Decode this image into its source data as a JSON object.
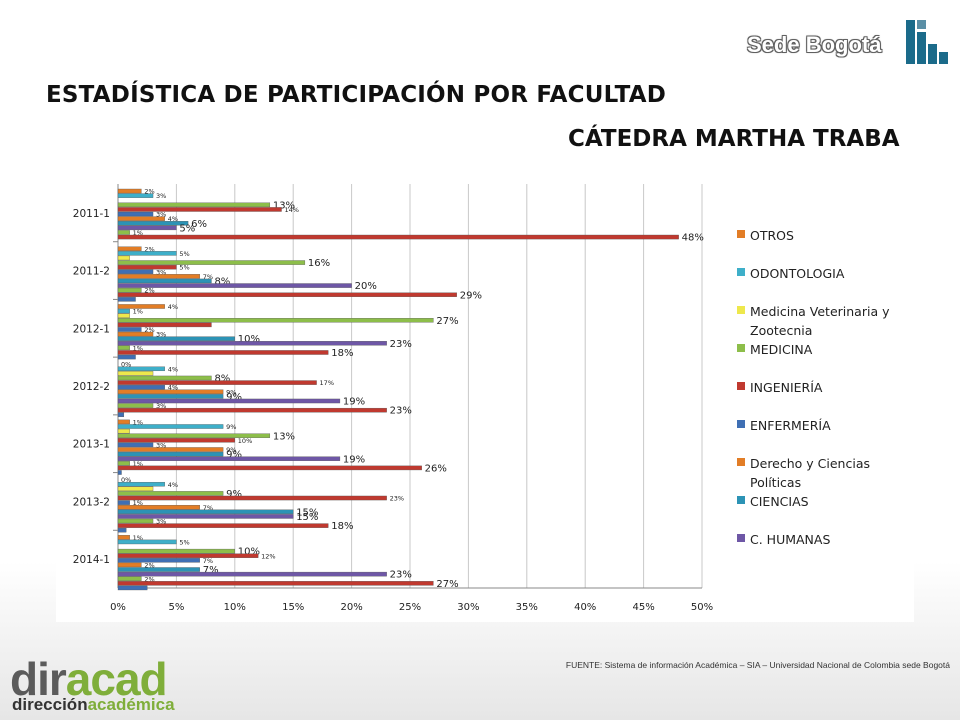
{
  "header": {
    "brand": "Sede Bogotá",
    "title": "ESTADÍSTICA DE PARTICIPACIÓN POR FACULTAD",
    "subtitle": "CÁTEDRA MARTHA TRABA"
  },
  "footer": {
    "logo_part1": "dir",
    "logo_part2": "acad",
    "logo_sub1": "dirección",
    "logo_sub2": "académica",
    "source": "FUENTE: Sistema de información Académica – SIA – Universidad Nacional de Colombia sede Bogotá"
  },
  "chart_data": {
    "type": "bar",
    "orientation": "horizontal",
    "categories": [
      "2011-1",
      "2011-2",
      "2012-1",
      "2012-2",
      "2013-1",
      "2013-2",
      "2014-1"
    ],
    "xlim": [
      0,
      50
    ],
    "xticks": [
      "0%",
      "5%",
      "10%",
      "15%",
      "20%",
      "25%",
      "30%",
      "35%",
      "40%",
      "45%",
      "50%"
    ],
    "grid": true,
    "legend_position": "right",
    "series": [
      {
        "name": "OTROS",
        "color": "#E27D26",
        "values": [
          2,
          2,
          4,
          0,
          1,
          0,
          1
        ],
        "labels": [
          "2%",
          "2%",
          "4%",
          "0%",
          "1%",
          "0%",
          "1%"
        ]
      },
      {
        "name": "ODONTOLOGIA",
        "color": "#3EAFC9",
        "values": [
          3,
          5,
          1,
          4,
          9,
          4,
          5
        ],
        "labels": [
          "3%",
          "5%",
          "1%",
          "4%",
          "9%",
          "4%",
          "5%"
        ]
      },
      {
        "name": "Medicina Veterinaria y Zootecnia",
        "color": "#EEE84C",
        "values": [
          0,
          1,
          1,
          3,
          1,
          3,
          0
        ],
        "labels": [
          "",
          "",
          "",
          "",
          "",
          "",
          ""
        ]
      },
      {
        "name": "MEDICINA",
        "color": "#8DBE4A",
        "values": [
          13,
          16,
          27,
          8,
          13,
          9,
          10
        ],
        "labels": [
          "13%",
          "16%",
          "27%",
          "8%",
          "13%",
          "9%",
          "10%"
        ]
      },
      {
        "name": "INGENIERÍA",
        "color": "#C0392F",
        "values": [
          14,
          5,
          8,
          17,
          10,
          23,
          12
        ],
        "labels": [
          "14%",
          "5%",
          "",
          "17%",
          "10%",
          "23%",
          "12%"
        ]
      },
      {
        "name": "ENFERMERÍA",
        "color": "#3F6FB4",
        "values": [
          3,
          3,
          2,
          4,
          3,
          1,
          7
        ],
        "labels": [
          "3%",
          "3%",
          "2%",
          "4%",
          "3%",
          "1%",
          "7%"
        ]
      },
      {
        "name": "Derecho y Ciencias Políticas",
        "color": "#E27D26",
        "values": [
          4,
          7,
          3,
          9,
          9,
          7,
          2
        ],
        "labels": [
          "4%",
          "7%",
          "3%",
          "9%",
          "9%",
          "7%",
          "2%"
        ]
      },
      {
        "name": "CIENCIAS",
        "color": "#2C93B5",
        "values": [
          6,
          8,
          10,
          9,
          9,
          15,
          7
        ],
        "labels": [
          "6%",
          "8%",
          "10%",
          "9%",
          "9%",
          "15%",
          "7%"
        ]
      },
      {
        "name": "C. HUMANAS",
        "color": "#6E57A6",
        "values": [
          5,
          20,
          23,
          19,
          19,
          15,
          23
        ],
        "labels": [
          "5%",
          "20%",
          "23%",
          "19%",
          "19%",
          "15%",
          "23%"
        ]
      },
      {
        "name": "MEDICINA",
        "color": "#8DBE4A",
        "values": [
          1,
          2,
          1,
          3,
          1,
          3,
          2
        ],
        "labels": [
          "1%",
          "2%",
          "1%",
          "3%",
          "1%",
          "3%",
          "2%"
        ]
      },
      {
        "name": "INGENIERÍA",
        "color": "#C0392F",
        "values": [
          48,
          29,
          18,
          23,
          26,
          18,
          27
        ],
        "labels": [
          "48%",
          "29%",
          "18%",
          "23%",
          "26%",
          "18%",
          "27%"
        ]
      },
      {
        "name": "ENFERMERÍA",
        "color": "#3F6FB4",
        "values": [
          0,
          1.5,
          1.5,
          0.5,
          0.3,
          0.7,
          2.5
        ],
        "labels": [
          "",
          "",
          "",
          "",
          "",
          "",
          ""
        ]
      }
    ],
    "legend": [
      "OTROS",
      "ODONTOLOGIA",
      "Medicina Veterinaria y Zootecnia",
      "MEDICINA",
      "INGENIERÍA",
      "ENFERMERÍA",
      "Derecho y Ciencias Políticas",
      "CIENCIAS",
      "C. HUMANAS"
    ],
    "legend_colors": [
      "#E27D26",
      "#3EAFC9",
      "#EEE84C",
      "#8DBE4A",
      "#C0392F",
      "#3F6FB4",
      "#E27D26",
      "#2C93B5",
      "#6E57A6"
    ],
    "big_labels": [
      [
        false,
        false,
        false,
        true,
        false,
        false,
        false,
        true,
        true,
        false,
        true,
        false
      ],
      [
        false,
        false,
        false,
        true,
        false,
        false,
        false,
        true,
        true,
        false,
        true,
        false
      ],
      [
        false,
        false,
        false,
        true,
        false,
        false,
        false,
        true,
        true,
        false,
        true,
        false
      ],
      [
        false,
        false,
        false,
        true,
        false,
        false,
        false,
        true,
        true,
        false,
        true,
        false
      ],
      [
        false,
        false,
        false,
        true,
        false,
        false,
        false,
        true,
        true,
        false,
        true,
        false
      ],
      [
        false,
        false,
        false,
        true,
        false,
        false,
        false,
        true,
        true,
        false,
        true,
        false
      ],
      [
        false,
        false,
        false,
        true,
        false,
        false,
        false,
        true,
        true,
        false,
        true,
        false
      ]
    ]
  }
}
